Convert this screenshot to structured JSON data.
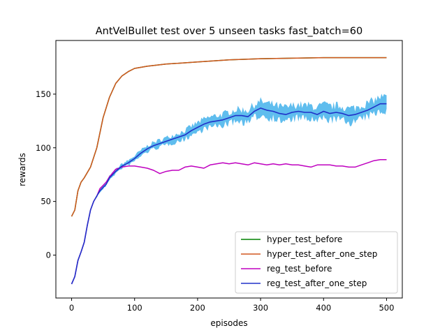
{
  "chart_data": {
    "type": "line",
    "title": "AntVelBullet test over 5 unseen tasks fast_batch=60",
    "xlabel": "episodes",
    "ylabel": "rewards",
    "xlim": [
      -25,
      525
    ],
    "ylim": [
      -40,
      200
    ],
    "xticks": [
      0,
      100,
      200,
      300,
      400,
      500
    ],
    "yticks": [
      0,
      50,
      100,
      150
    ],
    "grid": false,
    "legend_position": "lower-right",
    "series": [
      {
        "name": "hyper_test_before",
        "color": "#008000",
        "points": [
          [
            0,
            36
          ],
          [
            5,
            42
          ],
          [
            10,
            60
          ],
          [
            15,
            68
          ],
          [
            20,
            72
          ],
          [
            30,
            82
          ],
          [
            40,
            100
          ],
          [
            50,
            128
          ],
          [
            60,
            147
          ],
          [
            70,
            160
          ],
          [
            80,
            167
          ],
          [
            90,
            171
          ],
          [
            100,
            174
          ],
          [
            120,
            176
          ],
          [
            150,
            178
          ],
          [
            200,
            180
          ],
          [
            250,
            182
          ],
          [
            300,
            183
          ],
          [
            350,
            183.5
          ],
          [
            400,
            184
          ],
          [
            450,
            184
          ],
          [
            500,
            184
          ]
        ]
      },
      {
        "name": "hyper_test_after_one_step",
        "color": "#d2571e",
        "points": [
          [
            0,
            36
          ],
          [
            5,
            42
          ],
          [
            10,
            60
          ],
          [
            15,
            68
          ],
          [
            20,
            72
          ],
          [
            30,
            82
          ],
          [
            40,
            100
          ],
          [
            50,
            128
          ],
          [
            60,
            147
          ],
          [
            70,
            160
          ],
          [
            80,
            167
          ],
          [
            90,
            171
          ],
          [
            100,
            174
          ],
          [
            120,
            176
          ],
          [
            150,
            178
          ],
          [
            200,
            180
          ],
          [
            250,
            182
          ],
          [
            300,
            183
          ],
          [
            350,
            183.5
          ],
          [
            400,
            184
          ],
          [
            450,
            184
          ],
          [
            500,
            184
          ]
        ]
      },
      {
        "name": "reg_test_before",
        "color": "#bf00bf",
        "points": [
          [
            0,
            -27
          ],
          [
            5,
            -20
          ],
          [
            10,
            -5
          ],
          [
            15,
            3
          ],
          [
            20,
            12
          ],
          [
            25,
            28
          ],
          [
            30,
            42
          ],
          [
            35,
            50
          ],
          [
            40,
            55
          ],
          [
            45,
            62
          ],
          [
            50,
            65
          ],
          [
            55,
            68
          ],
          [
            60,
            73
          ],
          [
            70,
            80
          ],
          [
            80,
            82
          ],
          [
            90,
            83
          ],
          [
            100,
            83
          ],
          [
            110,
            82
          ],
          [
            120,
            81
          ],
          [
            130,
            79
          ],
          [
            140,
            76
          ],
          [
            150,
            78
          ],
          [
            160,
            79
          ],
          [
            170,
            79
          ],
          [
            180,
            82
          ],
          [
            190,
            83
          ],
          [
            200,
            82
          ],
          [
            210,
            81
          ],
          [
            220,
            84
          ],
          [
            230,
            85
          ],
          [
            240,
            86
          ],
          [
            250,
            85
          ],
          [
            260,
            86
          ],
          [
            270,
            85
          ],
          [
            280,
            84
          ],
          [
            290,
            86
          ],
          [
            300,
            85
          ],
          [
            310,
            84
          ],
          [
            320,
            85
          ],
          [
            330,
            84
          ],
          [
            340,
            85
          ],
          [
            350,
            84
          ],
          [
            360,
            84
          ],
          [
            370,
            83
          ],
          [
            380,
            82
          ],
          [
            390,
            84
          ],
          [
            400,
            84
          ],
          [
            410,
            84
          ],
          [
            420,
            83
          ],
          [
            430,
            83
          ],
          [
            440,
            82
          ],
          [
            450,
            82
          ],
          [
            460,
            84
          ],
          [
            470,
            86
          ],
          [
            480,
            88
          ],
          [
            490,
            89
          ],
          [
            500,
            89
          ]
        ]
      },
      {
        "name": "reg_test_after_one_step",
        "color": "#2030c8",
        "points": [
          [
            0,
            -27
          ],
          [
            5,
            -20
          ],
          [
            10,
            -5
          ],
          [
            15,
            3
          ],
          [
            20,
            12
          ],
          [
            25,
            28
          ],
          [
            30,
            42
          ],
          [
            35,
            50
          ],
          [
            40,
            55
          ],
          [
            45,
            60
          ],
          [
            50,
            63
          ],
          [
            55,
            66
          ],
          [
            60,
            72
          ],
          [
            70,
            78
          ],
          [
            80,
            83
          ],
          [
            90,
            86
          ],
          [
            100,
            90
          ],
          [
            110,
            95
          ],
          [
            120,
            99
          ],
          [
            130,
            102
          ],
          [
            140,
            104
          ],
          [
            150,
            106
          ],
          [
            160,
            108
          ],
          [
            170,
            110
          ],
          [
            180,
            112
          ],
          [
            190,
            116
          ],
          [
            200,
            119
          ],
          [
            210,
            122
          ],
          [
            220,
            124
          ],
          [
            230,
            125
          ],
          [
            240,
            126
          ],
          [
            250,
            128
          ],
          [
            260,
            130
          ],
          [
            270,
            130
          ],
          [
            280,
            129
          ],
          [
            290,
            134
          ],
          [
            300,
            137
          ],
          [
            310,
            135
          ],
          [
            320,
            134
          ],
          [
            330,
            132
          ],
          [
            340,
            131
          ],
          [
            350,
            133
          ],
          [
            360,
            134
          ],
          [
            370,
            133
          ],
          [
            380,
            133
          ],
          [
            390,
            131
          ],
          [
            400,
            134
          ],
          [
            410,
            132
          ],
          [
            420,
            133
          ],
          [
            430,
            132
          ],
          [
            440,
            130
          ],
          [
            450,
            131
          ],
          [
            460,
            133
          ],
          [
            470,
            135
          ],
          [
            480,
            138
          ],
          [
            490,
            141
          ],
          [
            500,
            141
          ]
        ]
      }
    ]
  }
}
